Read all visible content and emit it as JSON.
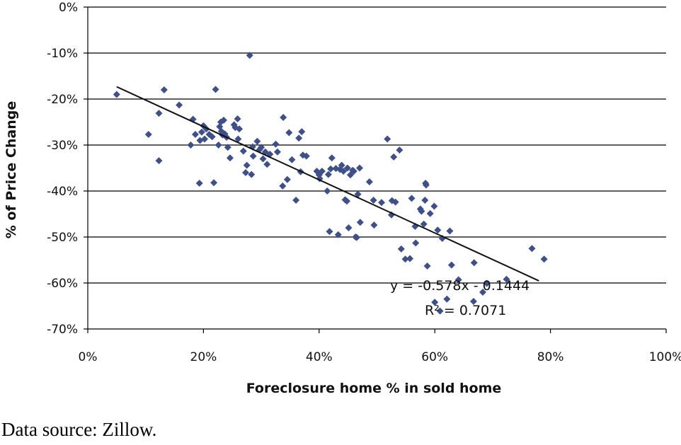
{
  "chart_data": {
    "type": "scatter",
    "title": "",
    "xlabel": "Foreclosure home % in sold home",
    "ylabel": "% of Price Change",
    "xlim": [
      0,
      100
    ],
    "ylim": [
      -70,
      0
    ],
    "x_ticks": [
      "0%",
      "20%",
      "40%",
      "60%",
      "80%",
      "100%"
    ],
    "y_ticks": [
      "0%",
      "-10%",
      "-20%",
      "-30%",
      "-40%",
      "-50%",
      "-60%",
      "-70%"
    ],
    "grid": "horizontal",
    "marker_color": "#3f5089",
    "trendline_color": "#111111",
    "trendline": {
      "slope": -57.8,
      "intercept": -14.44,
      "x_range": [
        5,
        78
      ]
    },
    "equation": "y = -0.578x - 0.1444",
    "r_squared": "R² = 0.7071",
    "points": [
      [
        5,
        -19
      ],
      [
        10.5,
        -27.7
      ],
      [
        12.3,
        -23.1
      ],
      [
        12.3,
        -33.4
      ],
      [
        13.2,
        -18
      ],
      [
        15.8,
        -21.3
      ],
      [
        17.8,
        -30
      ],
      [
        18.2,
        -24.4
      ],
      [
        18.6,
        -27.7
      ],
      [
        19.3,
        -38.3
      ],
      [
        19.4,
        -29
      ],
      [
        19.7,
        -27.2
      ],
      [
        20,
        -25.8
      ],
      [
        20.2,
        -28.7
      ],
      [
        20.5,
        -26.5
      ],
      [
        21,
        -27.7
      ],
      [
        21.5,
        -28.2
      ],
      [
        21.8,
        -38.2
      ],
      [
        22.1,
        -17.9
      ],
      [
        22.6,
        -30
      ],
      [
        22.8,
        -26
      ],
      [
        23,
        -25
      ],
      [
        23.1,
        -27
      ],
      [
        23.3,
        -27.8
      ],
      [
        23.5,
        -24.6
      ],
      [
        23.7,
        -27.6
      ],
      [
        24,
        -28.3
      ],
      [
        24.2,
        -30.5
      ],
      [
        24.6,
        -32.8
      ],
      [
        25.3,
        -25.6
      ],
      [
        25.5,
        -26.2
      ],
      [
        25.9,
        -24.3
      ],
      [
        26,
        -28.7
      ],
      [
        26.2,
        -26.5
      ],
      [
        26.9,
        -31.3
      ],
      [
        27.3,
        -36
      ],
      [
        27.5,
        -34.4
      ],
      [
        28,
        -10.5
      ],
      [
        28.3,
        -36.4
      ],
      [
        28.5,
        -30.4
      ],
      [
        28.6,
        -32.4
      ],
      [
        29.3,
        -29.2
      ],
      [
        29.7,
        -31
      ],
      [
        30,
        -30.5
      ],
      [
        30.3,
        -33
      ],
      [
        30.7,
        -31.5
      ],
      [
        31,
        -34.2
      ],
      [
        31.5,
        -32
      ],
      [
        32.5,
        -29.8
      ],
      [
        32.8,
        -31.5
      ],
      [
        33.7,
        -38.9
      ],
      [
        33.8,
        -24
      ],
      [
        34.5,
        -37.5
      ],
      [
        34.8,
        -27.3
      ],
      [
        35.3,
        -33.2
      ],
      [
        36,
        -42
      ],
      [
        36.5,
        -28.5
      ],
      [
        36.8,
        -35.8
      ],
      [
        37,
        -27.1
      ],
      [
        37.2,
        -32.2
      ],
      [
        37.8,
        -32.4
      ],
      [
        39.6,
        -35.7
      ],
      [
        40,
        -36.5
      ],
      [
        40.1,
        -37.3
      ],
      [
        40.5,
        -35.7
      ],
      [
        41.4,
        -40
      ],
      [
        41.6,
        -36.4
      ],
      [
        41.8,
        -48.8
      ],
      [
        42,
        -35.2
      ],
      [
        42.2,
        -32.8
      ],
      [
        42.9,
        -35.1
      ],
      [
        43.3,
        -49.5
      ],
      [
        43.6,
        -35.3
      ],
      [
        43.9,
        -34.4
      ],
      [
        44.2,
        -35.7
      ],
      [
        44.5,
        -41.9
      ],
      [
        44.8,
        -42.2
      ],
      [
        44.9,
        -35
      ],
      [
        45.1,
        -48
      ],
      [
        45.4,
        -36.5
      ],
      [
        45.8,
        -35.5
      ],
      [
        46,
        -35.7
      ],
      [
        46.3,
        -50
      ],
      [
        46.5,
        -50.1
      ],
      [
        46.7,
        -40.7
      ],
      [
        47,
        -35
      ],
      [
        47.1,
        -46.8
      ],
      [
        48.7,
        -38
      ],
      [
        49.4,
        -42
      ],
      [
        49.5,
        -47.4
      ],
      [
        50.8,
        -42.5
      ],
      [
        51.8,
        -28.7
      ],
      [
        52.5,
        -45.2
      ],
      [
        52.6,
        -42.1
      ],
      [
        52.9,
        -32.6
      ],
      [
        53.2,
        -42.4
      ],
      [
        53.9,
        -31.1
      ],
      [
        54.2,
        -52.6
      ],
      [
        54.9,
        -54.8
      ],
      [
        55.7,
        -54.7
      ],
      [
        56,
        -41.6
      ],
      [
        56.6,
        -47.7
      ],
      [
        56.7,
        -51.3
      ],
      [
        57.5,
        -43.9
      ],
      [
        57.7,
        -44.4
      ],
      [
        58.1,
        -47.2
      ],
      [
        58.3,
        -42
      ],
      [
        58.4,
        -38.3
      ],
      [
        58.5,
        -38.7
      ],
      [
        58.7,
        -56.3
      ],
      [
        59.2,
        -44.9
      ],
      [
        59.9,
        -43.3
      ],
      [
        60,
        -64.2
      ],
      [
        60.5,
        -48.5
      ],
      [
        60.9,
        -66.1
      ],
      [
        61.3,
        -50.3
      ],
      [
        62.1,
        -63.5
      ],
      [
        62.6,
        -48.7
      ],
      [
        62.9,
        -56.1
      ],
      [
        64.1,
        -59.3
      ],
      [
        66.7,
        -64
      ],
      [
        66.8,
        -55.6
      ],
      [
        68.3,
        -62
      ],
      [
        69,
        -60.1
      ],
      [
        72.4,
        -59.2
      ],
      [
        76.8,
        -52.5
      ],
      [
        78.9,
        -54.8
      ]
    ]
  },
  "footer": {
    "source": "Data source: Zillow."
  }
}
